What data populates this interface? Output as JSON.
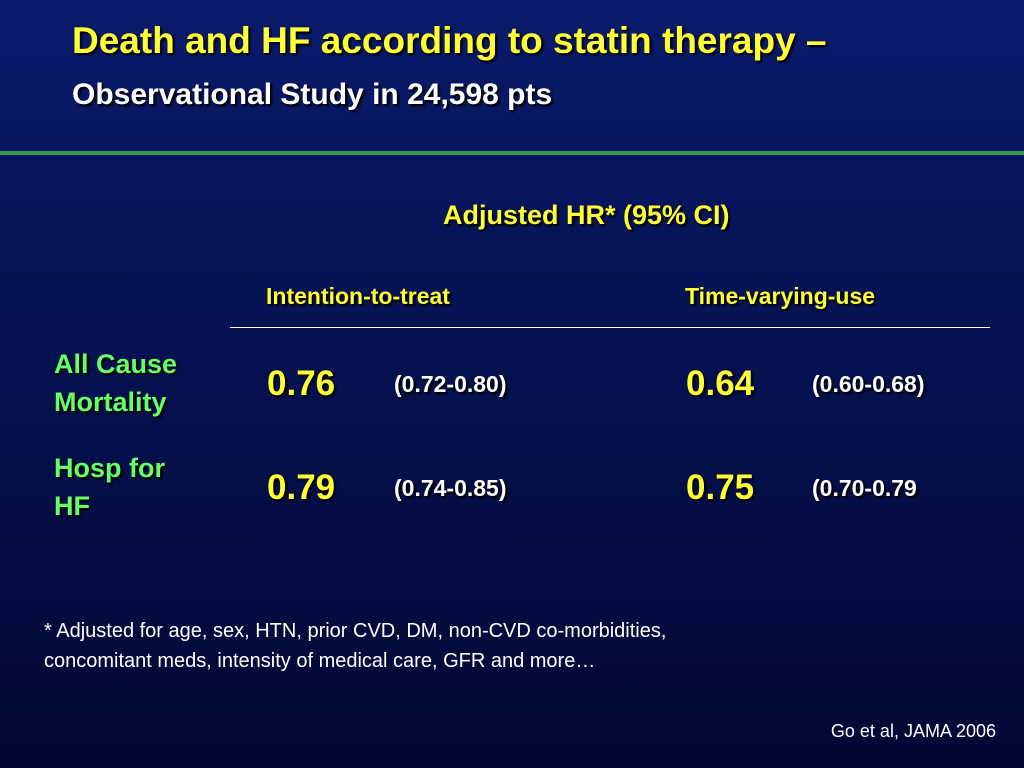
{
  "title": {
    "main": "Death and HF according to statin therapy –",
    "sub": "Observational Study in 24,598 pts"
  },
  "table": {
    "header": "Adjusted HR* (95% CI)",
    "columns": [
      "Intention-to-treat",
      "Time-varying-use"
    ],
    "rows": [
      {
        "label_lines": [
          "All Cause",
          "Mortality"
        ],
        "itt_hr": "0.76",
        "itt_ci": "(0.72-0.80)",
        "tvu_hr": "0.64",
        "tvu_ci": "(0.60-0.68)"
      },
      {
        "label_lines": [
          "Hosp for",
          "HF"
        ],
        "itt_hr": "0.79",
        "itt_ci": "(0.74-0.85)",
        "tvu_hr": "0.75",
        "tvu_ci": "(0.70-0.79"
      }
    ]
  },
  "footnote": {
    "line1": "* Adjusted for age, sex, HTN, prior CVD, DM, non-CVD co-morbidities,",
    "line2": "concomitant meds, intensity of medical care, GFR and more…"
  },
  "citation": "Go et al, JAMA 2006",
  "colors": {
    "background_top": "#0a1a6b",
    "background_bottom": "#020833",
    "title": "#ffff33",
    "row_label": "#66ff66",
    "divider": "#3b9a4a",
    "text": "#ffffff"
  }
}
